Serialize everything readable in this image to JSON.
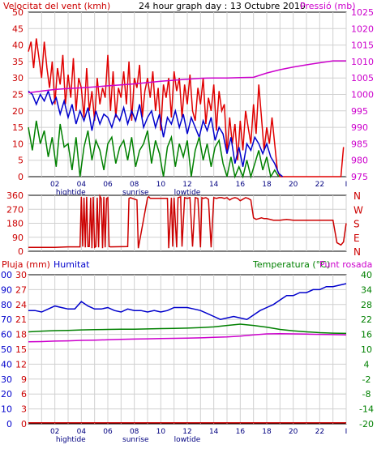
{
  "header": {
    "wind_title": "Velocitat del vent (kmh)",
    "graph_title": "24 hour graph day : 13 Octubre 2010",
    "pressure_title": "Pressió (mb)"
  },
  "panel3_header": {
    "rain_title": "Pluja (mm)",
    "humidity_title": "Humitat",
    "temperature_title": "Temperatura (°C)",
    "dewpoint_title": "Punt rosada"
  },
  "x_axis": {
    "hour_ticks": [
      "02",
      "04",
      "06",
      "08",
      "10",
      "12",
      "14",
      "16",
      "18",
      "20",
      "22",
      "I"
    ],
    "events": [
      {
        "label": "hightide",
        "hour": 3.2
      },
      {
        "label": "sunrise",
        "hour": 8.1
      },
      {
        "label": "lowtide",
        "hour": 12.0
      }
    ]
  },
  "colors": {
    "wind_gust": "#e00000",
    "wind_avg": "#0000cc",
    "wind_min": "#008000",
    "pressure": "#cc00cc",
    "direction": "#cc0000",
    "humidity": "#0000cc",
    "temperature": "#008000",
    "dewpoint": "#cc00cc",
    "rain": "#cc0000",
    "grid": "#d0d0d0",
    "frame": "#000000"
  },
  "chart_data": [
    {
      "type": "line",
      "name_key": "wind_pressure",
      "x_unit": "hour",
      "xlim": [
        0,
        24
      ],
      "ylim_left": [
        0,
        50
      ],
      "ylim_right": [
        975,
        1025
      ],
      "left_ticks": [
        0,
        5,
        10,
        15,
        20,
        25,
        30,
        35,
        40,
        45,
        50
      ],
      "right_ticks": [
        975,
        980,
        985,
        990,
        995,
        1000,
        1005,
        1010,
        1015,
        1020,
        1025
      ],
      "grid": true,
      "series": [
        {
          "name": "Velocitat del vent (kmh)",
          "color_key": "wind_gust",
          "axis": "left",
          "x": [
            0.0,
            0.2,
            0.4,
            0.6,
            0.8,
            1.0,
            1.2,
            1.4,
            1.6,
            1.8,
            2.0,
            2.2,
            2.4,
            2.6,
            2.8,
            3.0,
            3.2,
            3.4,
            3.6,
            3.8,
            4.0,
            4.2,
            4.4,
            4.6,
            4.8,
            5.0,
            5.2,
            5.4,
            5.6,
            5.8,
            6.0,
            6.2,
            6.4,
            6.6,
            6.8,
            7.0,
            7.2,
            7.4,
            7.6,
            7.8,
            8.0,
            8.2,
            8.4,
            8.6,
            8.8,
            9.0,
            9.2,
            9.4,
            9.6,
            9.8,
            10.0,
            10.2,
            10.4,
            10.6,
            10.8,
            11.0,
            11.2,
            11.4,
            11.6,
            11.8,
            12.0,
            12.2,
            12.4,
            12.6,
            12.8,
            13.0,
            13.2,
            13.4,
            13.6,
            13.8,
            14.0,
            14.2,
            14.4,
            14.6,
            14.8,
            15.0,
            15.2,
            15.4,
            15.6,
            15.8,
            16.0,
            16.2,
            16.4,
            16.6,
            16.8,
            17.0,
            17.2,
            17.4,
            17.6,
            17.8,
            18.0,
            18.2,
            18.4,
            18.6,
            18.8,
            19.0,
            19.4,
            20.0,
            22.0,
            23.6,
            23.8
          ],
          "values": [
            38,
            41,
            33,
            42,
            36,
            30,
            41,
            33,
            27,
            35,
            22,
            33,
            28,
            37,
            22,
            31,
            24,
            36,
            20,
            30,
            27,
            18,
            33,
            20,
            26,
            17,
            30,
            22,
            27,
            24,
            37,
            20,
            32,
            18,
            27,
            24,
            32,
            22,
            35,
            17,
            30,
            27,
            34,
            18,
            26,
            30,
            24,
            32,
            20,
            27,
            14,
            28,
            24,
            30,
            18,
            32,
            26,
            30,
            18,
            28,
            22,
            31,
            20,
            17,
            27,
            22,
            30,
            16,
            24,
            20,
            28,
            14,
            26,
            20,
            22,
            7,
            18,
            10,
            16,
            5,
            17,
            8,
            20,
            15,
            10,
            22,
            13,
            28,
            18,
            8,
            15,
            10,
            18,
            10,
            2,
            0,
            0,
            0,
            0,
            0,
            9
          ]
        },
        {
          "name": "Velocitat mitjana",
          "color_key": "wind_avg",
          "axis": "left",
          "x": [
            0.0,
            0.3,
            0.6,
            0.9,
            1.2,
            1.5,
            1.8,
            2.1,
            2.4,
            2.7,
            3.0,
            3.3,
            3.6,
            3.9,
            4.2,
            4.5,
            4.8,
            5.1,
            5.4,
            5.7,
            6.0,
            6.3,
            6.6,
            6.9,
            7.2,
            7.5,
            7.8,
            8.1,
            8.4,
            8.7,
            9.0,
            9.3,
            9.6,
            9.9,
            10.2,
            10.5,
            10.8,
            11.1,
            11.4,
            11.7,
            12.0,
            12.3,
            12.6,
            12.9,
            13.2,
            13.5,
            13.8,
            14.1,
            14.4,
            14.7,
            15.0,
            15.3,
            15.6,
            15.9,
            16.2,
            16.5,
            16.8,
            17.1,
            17.4,
            17.7,
            18.0,
            18.3,
            18.6,
            18.9,
            19.2
          ],
          "values": [
            26,
            25,
            22,
            25,
            23,
            26,
            22,
            24,
            19,
            23,
            18,
            22,
            16,
            20,
            17,
            21,
            14,
            20,
            16,
            19,
            18,
            15,
            19,
            17,
            21,
            16,
            20,
            17,
            22,
            15,
            18,
            20,
            15,
            19,
            12,
            18,
            16,
            20,
            15,
            19,
            13,
            18,
            15,
            12,
            17,
            14,
            18,
            11,
            15,
            13,
            7,
            12,
            4,
            9,
            3,
            10,
            8,
            12,
            10,
            7,
            10,
            6,
            4,
            1,
            0
          ]
        },
        {
          "name": "Velocitat mínima",
          "color_key": "wind_min",
          "axis": "left",
          "x": [
            0.0,
            0.3,
            0.6,
            0.9,
            1.2,
            1.5,
            1.8,
            2.1,
            2.4,
            2.7,
            3.0,
            3.3,
            3.6,
            3.9,
            4.2,
            4.5,
            4.8,
            5.1,
            5.4,
            5.7,
            6.0,
            6.3,
            6.6,
            6.9,
            7.2,
            7.5,
            7.8,
            8.1,
            8.4,
            8.7,
            9.0,
            9.3,
            9.6,
            9.9,
            10.2,
            10.5,
            10.8,
            11.1,
            11.4,
            11.7,
            12.0,
            12.3,
            12.6,
            12.9,
            13.2,
            13.5,
            13.8,
            14.1,
            14.4,
            14.7,
            15.0,
            15.3,
            15.6,
            15.9,
            16.2,
            16.5,
            16.8,
            17.1,
            17.4,
            17.7,
            18.0,
            18.3,
            18.6,
            18.9
          ],
          "values": [
            15,
            8,
            17,
            10,
            14,
            6,
            12,
            3,
            16,
            9,
            10,
            2,
            12,
            0,
            9,
            14,
            5,
            11,
            8,
            2,
            10,
            12,
            4,
            9,
            11,
            5,
            12,
            3,
            8,
            10,
            14,
            4,
            11,
            7,
            0,
            9,
            12,
            3,
            10,
            6,
            11,
            0,
            8,
            12,
            5,
            10,
            3,
            9,
            11,
            4,
            0,
            6,
            0,
            3,
            0,
            5,
            0,
            4,
            8,
            2,
            6,
            0,
            2,
            0
          ]
        },
        {
          "name": "Pressió (mb)",
          "color_key": "pressure",
          "axis": "right",
          "x": [
            0,
            1,
            2,
            3,
            4,
            5,
            6,
            7,
            8,
            9,
            10,
            11,
            12,
            13,
            14,
            15,
            16,
            17,
            18,
            19,
            20,
            21,
            22,
            23,
            24
          ],
          "values": [
            1000.5,
            1001.0,
            1001.5,
            1001.8,
            1002.0,
            1002.3,
            1002.6,
            1002.9,
            1003.2,
            1003.6,
            1004.0,
            1004.3,
            1004.6,
            1004.9,
            1005.0,
            1005.0,
            1005.1,
            1005.2,
            1006.5,
            1007.5,
            1008.3,
            1009.0,
            1009.6,
            1010.2,
            1010.2
          ]
        }
      ]
    },
    {
      "type": "line",
      "name_key": "wind_direction",
      "x_unit": "hour",
      "xlim": [
        0,
        24
      ],
      "ylim": [
        0,
        360
      ],
      "left_ticks": [
        0,
        90,
        180,
        270,
        360
      ],
      "right_labels": [
        "N",
        "W",
        "S",
        "E",
        "N"
      ],
      "grid": true,
      "series": [
        {
          "name": "Direcció del vent",
          "color_key": "direction",
          "axis": "left",
          "x": [
            0.0,
            1.0,
            2.0,
            3.0,
            3.9,
            4.0,
            4.1,
            4.2,
            4.3,
            4.4,
            4.5,
            4.6,
            4.7,
            4.8,
            4.9,
            5.0,
            5.1,
            5.2,
            5.3,
            5.4,
            5.5,
            5.6,
            5.7,
            5.8,
            5.9,
            6.0,
            6.1,
            6.2,
            7.5,
            7.6,
            7.7,
            8.2,
            8.3,
            9.0,
            9.1,
            9.2,
            10.5,
            10.6,
            10.8,
            10.9,
            11.0,
            11.2,
            11.3,
            11.5,
            11.6,
            11.8,
            12.0,
            12.2,
            12.4,
            12.6,
            12.8,
            13.0,
            13.1,
            13.2,
            13.4,
            13.6,
            13.8,
            14.0,
            14.2,
            14.4,
            14.6,
            14.8,
            15.0,
            15.2,
            15.4,
            15.6,
            15.8,
            16.0,
            16.2,
            16.4,
            16.6,
            16.8,
            17.0,
            17.2,
            17.4,
            17.6,
            17.8,
            18.0,
            18.5,
            19.0,
            19.5,
            20.0,
            20.5,
            21.0,
            21.5,
            22.0,
            22.5,
            23.0,
            23.3,
            23.6,
            23.8,
            24.0
          ],
          "values": [
            25,
            25,
            25,
            28,
            28,
            350,
            30,
            345,
            25,
            350,
            30,
            30,
            345,
            20,
            350,
            25,
            30,
            345,
            25,
            355,
            340,
            20,
            350,
            25,
            340,
            345,
            30,
            28,
            30,
            340,
            345,
            330,
            20,
            345,
            350,
            340,
            340,
            20,
            345,
            30,
            345,
            25,
            345,
            350,
            30,
            345,
            340,
            345,
            30,
            345,
            340,
            25,
            345,
            340,
            345,
            335,
            25,
            345,
            340,
            345,
            345,
            340,
            345,
            330,
            340,
            345,
            340,
            325,
            335,
            345,
            340,
            330,
            215,
            205,
            210,
            215,
            210,
            210,
            200,
            200,
            205,
            200,
            200,
            200,
            200,
            200,
            200,
            200,
            55,
            40,
            60,
            180
          ]
        }
      ]
    },
    {
      "type": "line",
      "name_key": "rain_humidity_temp",
      "x_unit": "hour",
      "xlim": [
        0,
        24
      ],
      "ylim_humidity": [
        0,
        100
      ],
      "ylim_rain": [
        0,
        30
      ],
      "ylim_temperature": [
        -20,
        40
      ],
      "humidity_ticks": [
        0,
        10,
        20,
        30,
        40,
        50,
        60,
        70,
        80,
        90,
        100
      ],
      "rain_ticks": [
        0,
        3,
        6,
        9,
        12,
        15,
        18,
        21,
        24,
        27,
        30
      ],
      "temperature_ticks": [
        -20,
        -14,
        -8,
        -2,
        4,
        10,
        16,
        22,
        28,
        34,
        40
      ],
      "grid": true,
      "series": [
        {
          "name": "Humitat",
          "color_key": "humidity",
          "axis": "humidity",
          "x": [
            0,
            0.5,
            1,
            1.5,
            2,
            2.5,
            3,
            3.5,
            4,
            4.5,
            5,
            5.5,
            6,
            6.5,
            7,
            7.5,
            8,
            8.5,
            9,
            9.5,
            10,
            10.5,
            11,
            11.5,
            12,
            12.5,
            13,
            13.5,
            14,
            14.5,
            15,
            15.5,
            16,
            16.5,
            17,
            17.5,
            18,
            18.5,
            19,
            19.5,
            20,
            20.5,
            21,
            21.5,
            22,
            22.5,
            23,
            23.5,
            24
          ],
          "values": [
            76,
            76,
            75,
            77,
            79,
            78,
            77,
            77,
            82,
            79,
            77,
            77,
            78,
            76,
            75,
            77,
            76,
            76,
            75,
            76,
            75,
            76,
            78,
            78,
            78,
            77,
            76,
            74,
            72,
            70,
            71,
            72,
            71,
            70,
            73,
            76,
            78,
            80,
            83,
            86,
            86,
            88,
            88,
            90,
            90,
            92,
            92,
            93,
            94
          ]
        },
        {
          "name": "Temperatura (°C)",
          "color_key": "temperature",
          "axis": "temperature",
          "x": [
            0,
            1,
            2,
            3,
            4,
            5,
            6,
            7,
            8,
            9,
            10,
            11,
            12,
            13,
            14,
            15,
            16,
            17,
            18,
            19,
            20,
            21,
            22,
            23,
            24
          ],
          "values": [
            17.0,
            17.3,
            17.5,
            17.6,
            17.8,
            17.9,
            18.0,
            18.1,
            18.1,
            18.2,
            18.3,
            18.4,
            18.5,
            18.7,
            19.0,
            19.6,
            20.1,
            19.6,
            18.9,
            18.0,
            17.4,
            17.0,
            16.7,
            16.5,
            16.4
          ]
        },
        {
          "name": "Punt rosada",
          "color_key": "dewpoint",
          "axis": "temperature",
          "x": [
            0,
            1,
            2,
            3,
            4,
            5,
            6,
            7,
            8,
            9,
            10,
            11,
            12,
            13,
            14,
            15,
            16,
            17,
            18,
            19,
            20,
            21,
            22,
            23,
            24
          ],
          "values": [
            13.0,
            13.1,
            13.3,
            13.4,
            13.6,
            13.7,
            13.8,
            14.0,
            14.1,
            14.2,
            14.3,
            14.4,
            14.5,
            14.6,
            14.8,
            15.0,
            15.3,
            15.8,
            16.2,
            16.3,
            16.2,
            16.1,
            16.0,
            15.9,
            15.8
          ]
        },
        {
          "name": "Pluja (mm)",
          "color_key": "rain",
          "axis": "rain",
          "x": [
            0,
            24
          ],
          "values": [
            0.2,
            0.2
          ]
        }
      ]
    }
  ]
}
